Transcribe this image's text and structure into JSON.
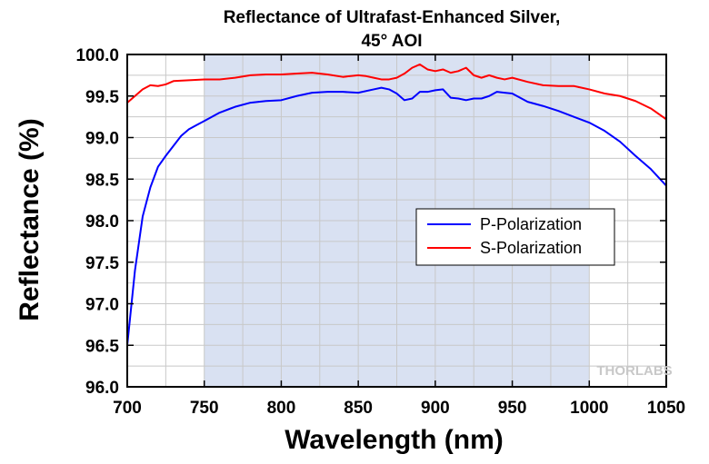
{
  "chart_data": {
    "type": "line",
    "title": [
      "Reflectance of Ultrafast-Enhanced Silver,",
      "45° AOI"
    ],
    "xlabel": "Wavelength (nm)",
    "ylabel": "Reflectance (%)",
    "xlim": [
      700,
      1050
    ],
    "ylim": [
      96.0,
      100.0
    ],
    "xticks": [
      700,
      750,
      800,
      850,
      900,
      950,
      1000,
      1050
    ],
    "yticks": [
      "96.0",
      "96.5",
      "97.0",
      "97.5",
      "98.0",
      "98.5",
      "99.0",
      "99.5",
      "100.0"
    ],
    "grid": true,
    "highlight_region": {
      "x": [
        750,
        1000
      ],
      "color": "#d9e1f2"
    },
    "legend_position": "center-right",
    "watermark": "THORLABS",
    "series": [
      {
        "name": "P-Polarization",
        "color": "#0000ff",
        "x": [
          700,
          705,
          710,
          715,
          720,
          725,
          730,
          735,
          740,
          745,
          750,
          760,
          770,
          780,
          790,
          800,
          810,
          820,
          830,
          840,
          850,
          860,
          865,
          870,
          875,
          880,
          885,
          890,
          895,
          900,
          905,
          910,
          915,
          920,
          925,
          930,
          935,
          940,
          945,
          950,
          960,
          970,
          980,
          990,
          1000,
          1010,
          1020,
          1030,
          1040,
          1050
        ],
        "y": [
          96.5,
          97.4,
          98.05,
          98.4,
          98.65,
          98.78,
          98.9,
          99.02,
          99.1,
          99.15,
          99.2,
          99.3,
          99.37,
          99.42,
          99.44,
          99.45,
          99.5,
          99.54,
          99.55,
          99.55,
          99.54,
          99.58,
          99.6,
          99.58,
          99.53,
          99.45,
          99.47,
          99.55,
          99.55,
          99.57,
          99.58,
          99.48,
          99.47,
          99.45,
          99.47,
          99.47,
          99.5,
          99.55,
          99.54,
          99.53,
          99.43,
          99.38,
          99.32,
          99.25,
          99.18,
          99.08,
          98.95,
          98.78,
          98.62,
          98.42
        ]
      },
      {
        "name": "S-Polarization",
        "color": "#ff0000",
        "x": [
          700,
          705,
          710,
          715,
          720,
          725,
          730,
          740,
          750,
          760,
          770,
          780,
          790,
          800,
          810,
          820,
          830,
          840,
          850,
          855,
          860,
          865,
          870,
          875,
          880,
          885,
          890,
          895,
          900,
          905,
          910,
          915,
          920,
          925,
          930,
          935,
          940,
          945,
          950,
          960,
          970,
          980,
          990,
          1000,
          1010,
          1020,
          1030,
          1040,
          1050
        ],
        "y": [
          99.42,
          99.5,
          99.58,
          99.63,
          99.62,
          99.64,
          99.68,
          99.69,
          99.7,
          99.7,
          99.72,
          99.75,
          99.76,
          99.76,
          99.77,
          99.78,
          99.76,
          99.73,
          99.75,
          99.74,
          99.72,
          99.7,
          99.7,
          99.72,
          99.77,
          99.84,
          99.88,
          99.82,
          99.8,
          99.82,
          99.78,
          99.8,
          99.84,
          99.75,
          99.72,
          99.75,
          99.72,
          99.7,
          99.72,
          99.67,
          99.63,
          99.62,
          99.62,
          99.58,
          99.53,
          99.5,
          99.44,
          99.35,
          99.22
        ]
      }
    ]
  }
}
